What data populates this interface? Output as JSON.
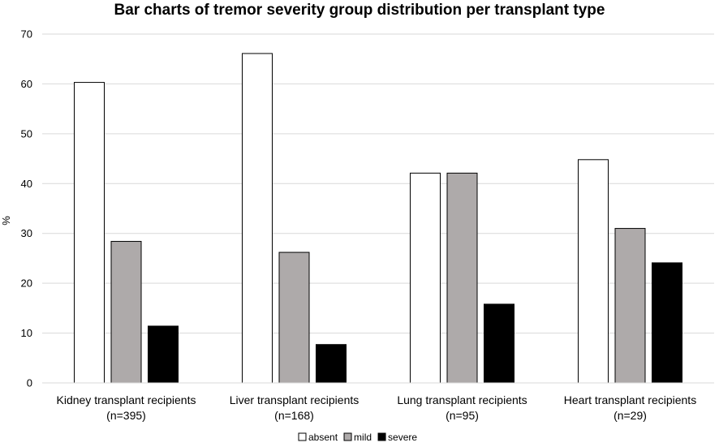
{
  "chart_data": {
    "type": "bar",
    "title": "Bar charts of tremor severity group distribution per transplant type",
    "xlabel": "",
    "ylabel": "%",
    "ylim": [
      0,
      70
    ],
    "yticks": [
      0,
      10,
      20,
      30,
      40,
      50,
      60,
      70
    ],
    "grid": true,
    "legend_position": "bottom",
    "categories": [
      [
        "Kidney transplant recipients",
        "(n=395)"
      ],
      [
        "Liver transplant recipients",
        "(n=168)"
      ],
      [
        "Lung transplant recipients",
        "(n=95)"
      ],
      [
        "Heart  transplant recipients",
        "(n=29)"
      ]
    ],
    "series": [
      {
        "name": "absent",
        "color": "#ffffff",
        "values": [
          60.3,
          66.1,
          42.1,
          44.8
        ]
      },
      {
        "name": "mild",
        "color": "#aeaaaa",
        "values": [
          28.4,
          26.2,
          42.1,
          31.0
        ]
      },
      {
        "name": "severe",
        "color": "#000000",
        "values": [
          11.4,
          7.7,
          15.8,
          24.1
        ]
      }
    ]
  }
}
